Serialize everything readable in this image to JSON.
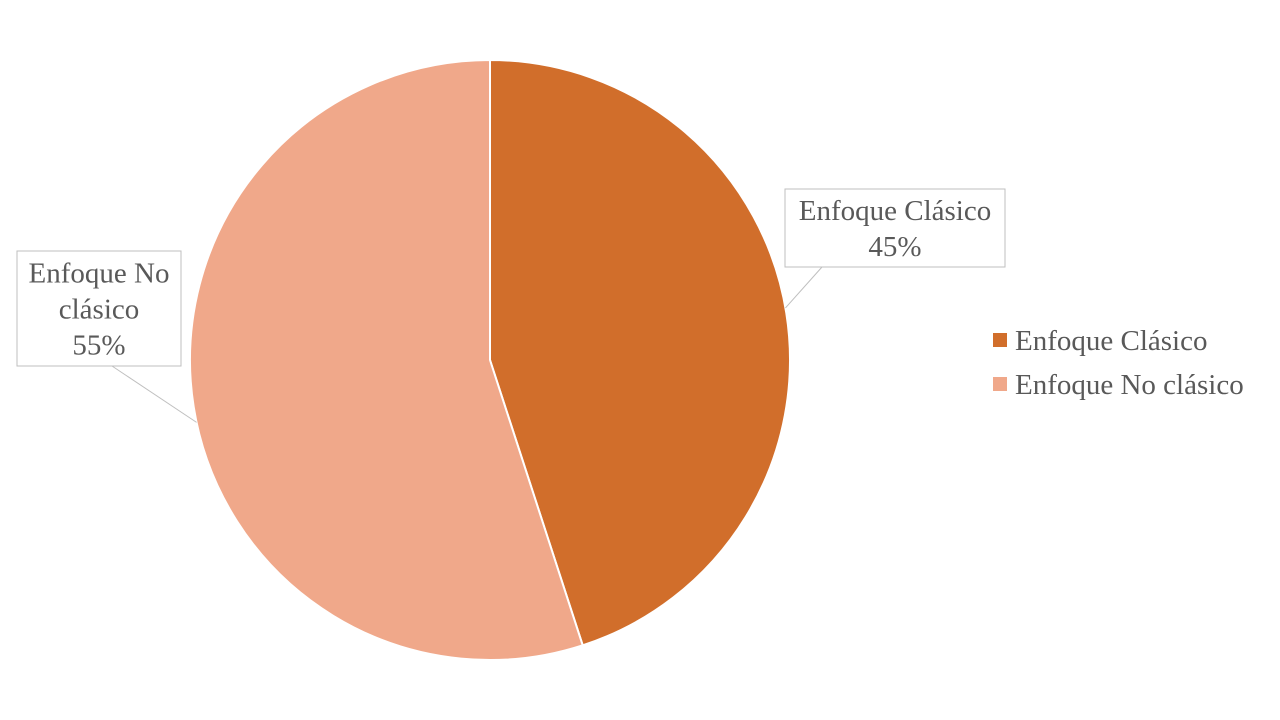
{
  "chart_data": {
    "type": "pie",
    "categories": [
      "Enfoque Clásico",
      "Enfoque No clásico"
    ],
    "values": [
      45,
      55
    ],
    "value_unit": "%",
    "colors": [
      "#D16E2B",
      "#F0A88A"
    ],
    "data_labels": [
      {
        "lines": [
          "Enfoque Clásico",
          "45%"
        ]
      },
      {
        "lines": [
          "Enfoque No",
          "clásico",
          "55%"
        ]
      }
    ],
    "start_angle_deg": 0,
    "direction": "clockwise",
    "legend": {
      "position": "right",
      "entries": [
        "Enfoque Clásico",
        "Enfoque No clásico"
      ]
    }
  }
}
